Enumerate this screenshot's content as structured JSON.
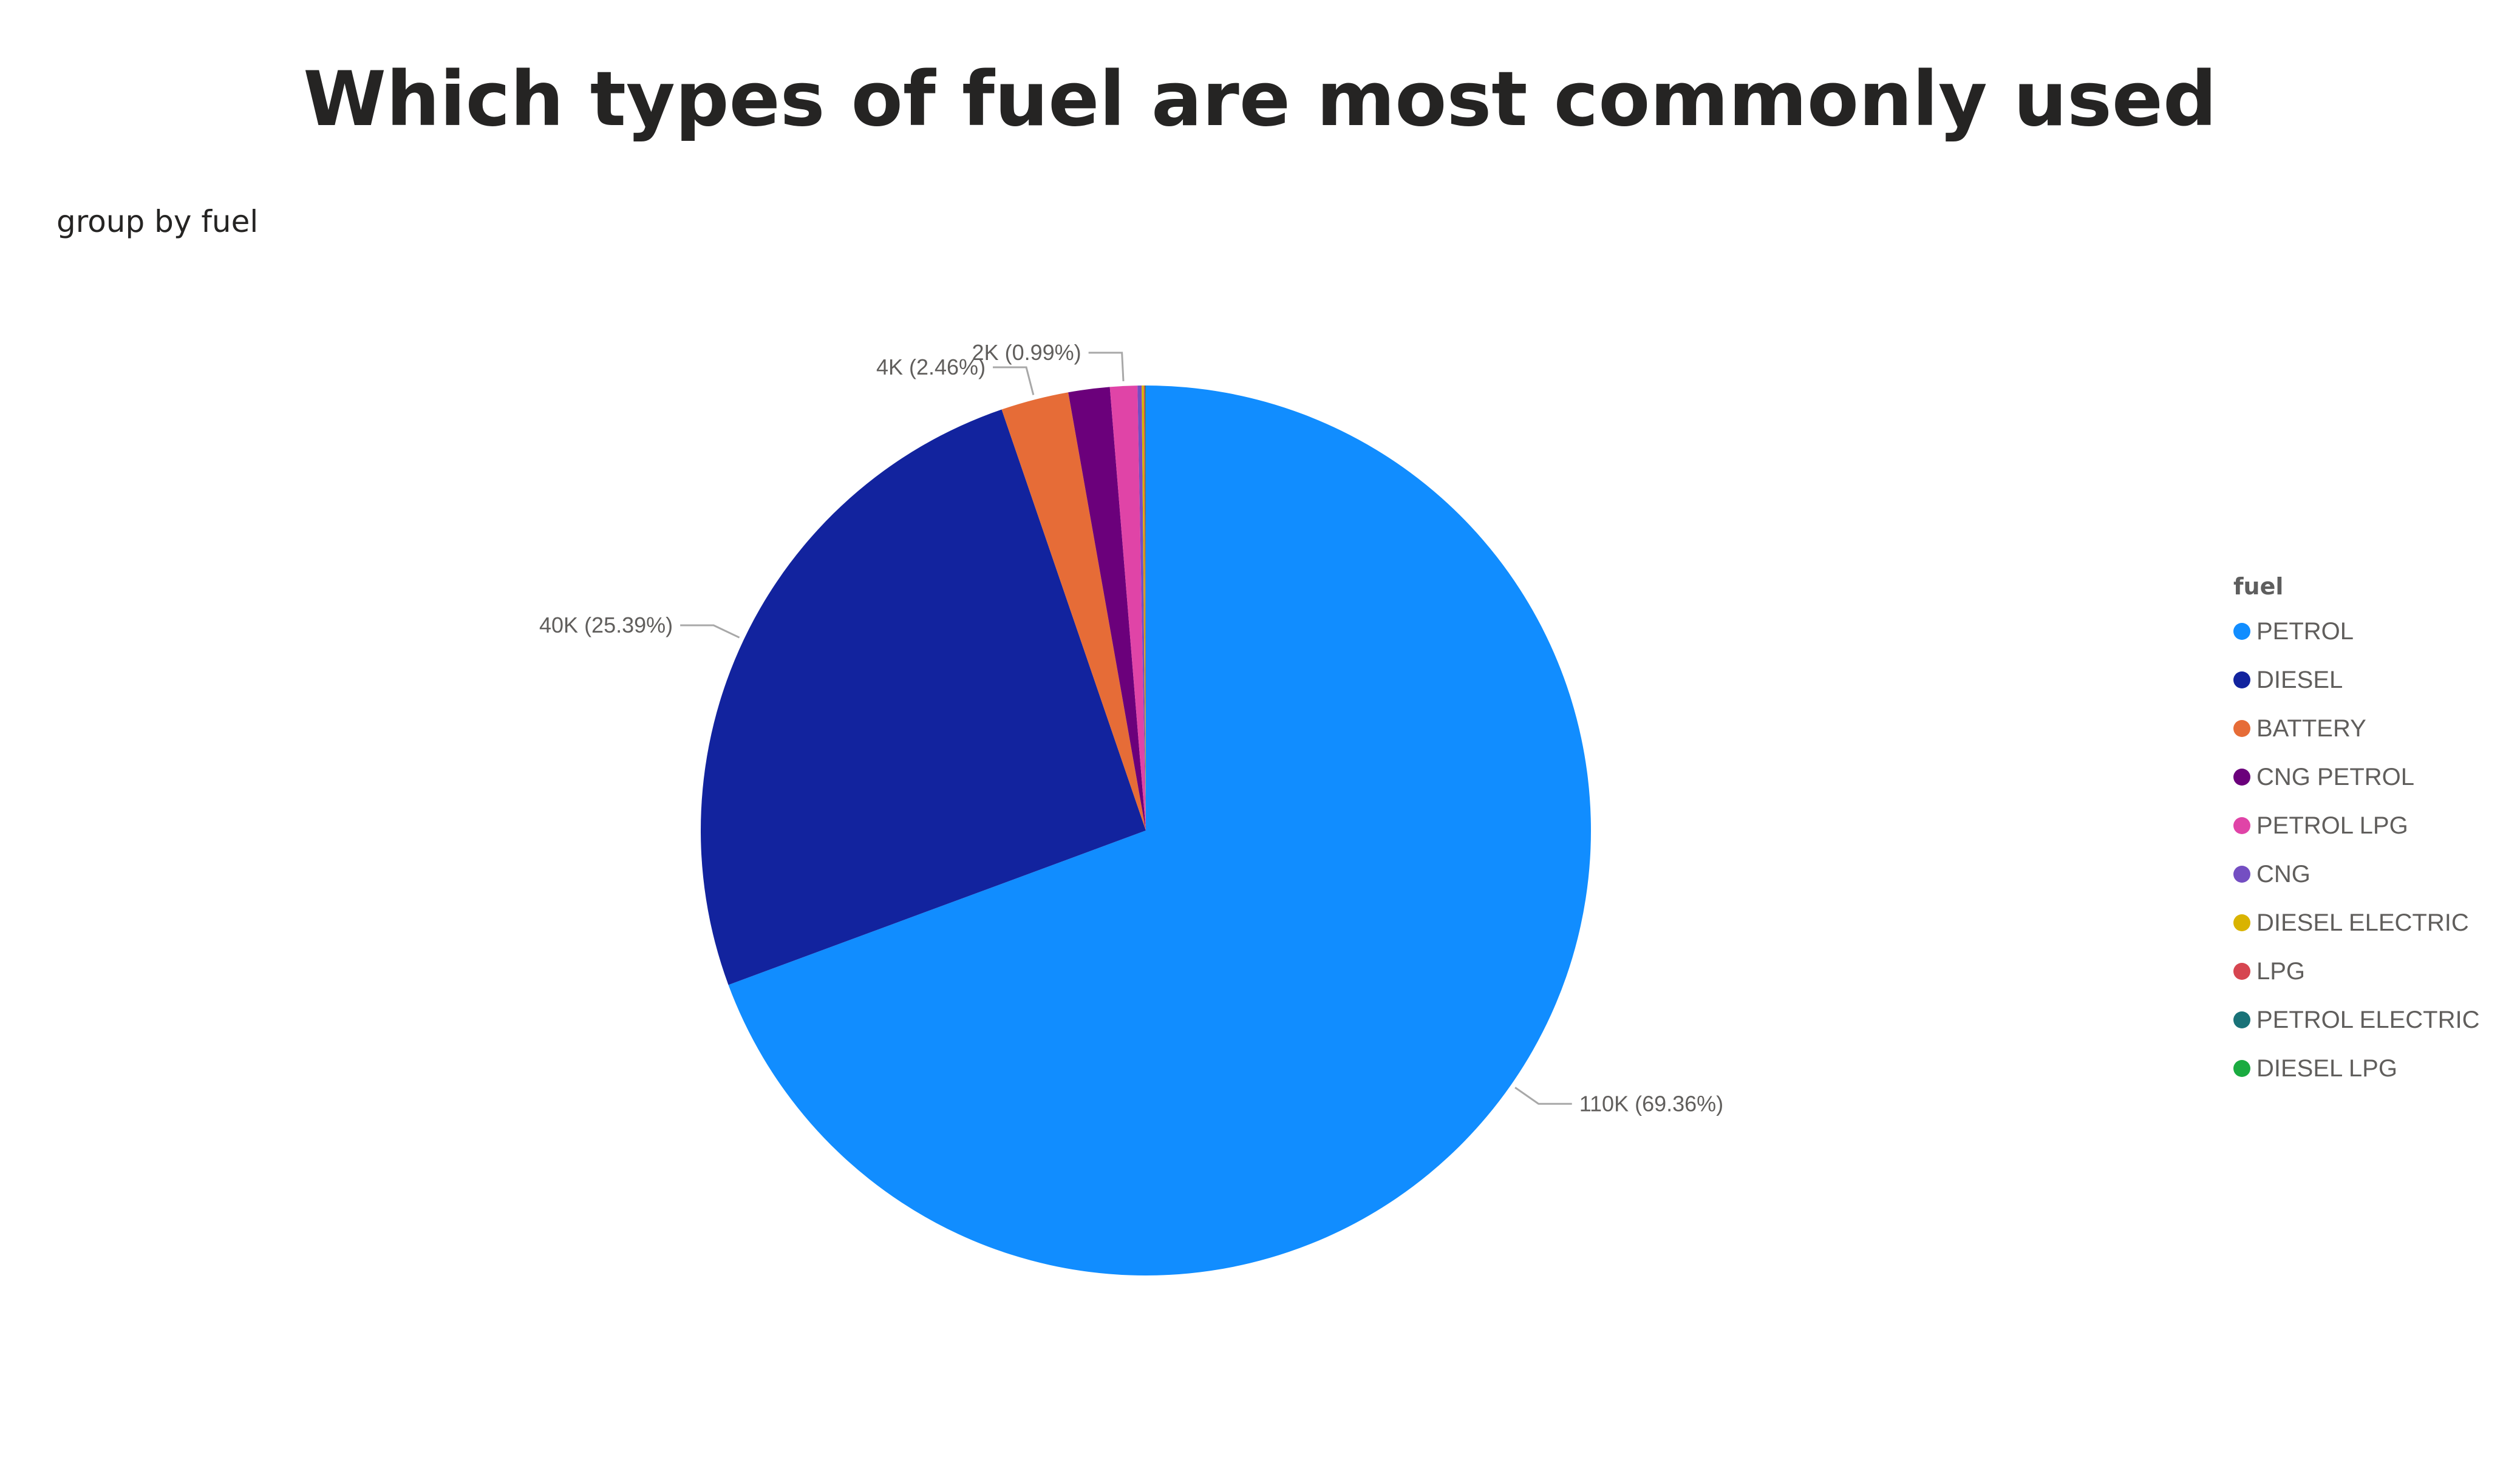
{
  "title": "Which types of fuel are most commonly used",
  "subtitle": "group by fuel",
  "legend": {
    "title": "fuel"
  },
  "chart_data": {
    "type": "pie",
    "title": "Which types of fuel are most commonly used",
    "subtitle": "group by fuel",
    "legend_title": "fuel",
    "legend_position": "right",
    "categories": [
      "PETROL",
      "DIESEL",
      "BATTERY",
      "CNG PETROL",
      "PETROL LPG",
      "CNG",
      "DIESEL ELECTRIC",
      "LPG",
      "PETROL ELECTRIC",
      "DIESEL LPG"
    ],
    "percents": [
      69.36,
      25.39,
      2.46,
      1.5,
      0.99,
      0.15,
      0.08,
      0.04,
      0.02,
      0.01
    ],
    "colors": [
      "#118DFF",
      "#12239E",
      "#E66C37",
      "#6B007B",
      "#E044A7",
      "#744EC2",
      "#D9B300",
      "#D64550",
      "#197278",
      "#1AAB40"
    ],
    "data_labels": [
      {
        "category": "PETROL",
        "text": "110K (69.36%)"
      },
      {
        "category": "DIESEL",
        "text": "40K (25.39%)"
      },
      {
        "category": "BATTERY",
        "text": "4K (2.46%)"
      },
      {
        "category": "PETROL LPG",
        "text": "2K (0.99%)"
      }
    ]
  }
}
